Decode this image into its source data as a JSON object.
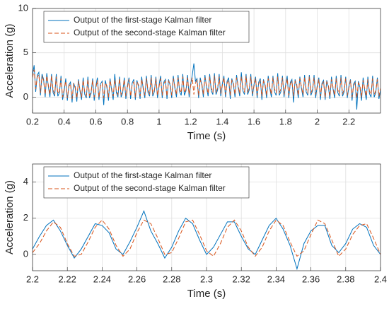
{
  "chart_data": [
    {
      "type": "line",
      "xlabel": "Time (s)",
      "ylabel": "Acceleration (g)",
      "grid": true,
      "legend": "upper left",
      "xlim": [
        0.2,
        2.4
      ],
      "ylim": [
        -1.8,
        10
      ],
      "xticks": [
        0.2,
        0.4,
        0.6,
        0.8,
        1,
        1.2,
        1.4,
        1.6,
        1.8,
        2,
        2.2
      ],
      "yticks": [
        0,
        5,
        10
      ],
      "x": [
        0.2,
        0.21,
        0.22,
        0.23,
        0.24,
        0.25,
        0.26,
        0.27,
        0.28,
        0.29,
        0.3,
        0.31,
        0.32,
        0.33,
        0.34,
        0.35,
        0.36,
        0.37,
        0.38,
        0.39,
        0.4,
        0.41,
        0.42,
        0.43,
        0.44,
        0.45,
        0.46,
        0.47,
        0.48,
        0.49,
        0.5,
        0.51,
        0.52,
        0.53,
        0.54,
        0.55,
        0.56,
        0.57,
        0.58,
        0.59,
        0.6,
        0.61,
        0.62,
        0.63,
        0.64,
        0.65,
        0.66,
        0.67,
        0.68,
        0.69,
        0.7,
        0.71,
        0.72,
        0.73,
        0.74,
        0.75,
        0.76,
        0.77,
        0.78,
        0.79,
        0.8,
        0.81,
        0.82,
        0.83,
        0.84,
        0.85,
        0.86,
        0.87,
        0.88,
        0.89,
        0.9,
        0.91,
        0.92,
        0.93,
        0.94,
        0.95,
        0.96,
        0.97,
        0.98,
        0.99,
        1,
        1.01,
        1.02,
        1.03,
        1.04,
        1.05,
        1.06,
        1.07,
        1.08,
        1.09,
        1.1,
        1.11,
        1.12,
        1.13,
        1.14,
        1.15,
        1.16,
        1.17,
        1.18,
        1.19,
        1.2,
        1.21,
        1.22,
        1.23,
        1.24,
        1.25,
        1.26,
        1.27,
        1.28,
        1.29,
        1.3,
        1.31,
        1.32,
        1.33,
        1.34,
        1.35,
        1.36,
        1.37,
        1.38,
        1.39,
        1.4,
        1.41,
        1.42,
        1.43,
        1.44,
        1.45,
        1.46,
        1.47,
        1.48,
        1.49,
        1.5,
        1.51,
        1.52,
        1.53,
        1.54,
        1.55,
        1.56,
        1.57,
        1.58,
        1.59,
        1.6,
        1.61,
        1.62,
        1.63,
        1.64,
        1.65,
        1.66,
        1.67,
        1.68,
        1.69,
        1.7,
        1.71,
        1.72,
        1.73,
        1.74,
        1.75,
        1.76,
        1.77,
        1.78,
        1.79,
        1.8,
        1.81,
        1.82,
        1.83,
        1.84,
        1.85,
        1.86,
        1.87,
        1.88,
        1.89,
        1.9,
        1.91,
        1.92,
        1.93,
        1.94,
        1.95,
        1.96,
        1.97,
        1.98,
        1.99,
        2,
        2.01,
        2.02,
        2.03,
        2.04,
        2.05,
        2.06,
        2.07,
        2.08,
        2.09,
        2.1,
        2.11,
        2.12,
        2.13,
        2.14,
        2.15,
        2.16,
        2.17,
        2.18,
        2.19,
        2.2,
        2.21,
        2.22,
        2.23,
        2.24,
        2.25,
        2.26,
        2.27,
        2.28,
        2.29,
        2.3,
        2.31,
        2.32,
        2.33,
        2.34,
        2.35,
        2.36,
        2.37,
        2.38,
        2.39,
        2.4
      ],
      "series": [
        {
          "name": "Output of the first-stage Kalman filter",
          "color": "#0072BD",
          "linestyle": "solid",
          "values": [
            2.5,
            3.6,
            0.6,
            2.5,
            2.8,
            0.2,
            2.6,
            2.0,
            0.0,
            2.7,
            1.2,
            0.0,
            2.6,
            0.5,
            0.1,
            2.6,
            0.1,
            0.5,
            2.4,
            -0.3,
            0.7,
            2.1,
            -0.4,
            1.4,
            1.7,
            -0.6,
            1.6,
            1.0,
            -0.5,
            2.0,
            0.7,
            -0.3,
            2.2,
            0.3,
            -0.1,
            2.3,
            -0.1,
            0.4,
            2.1,
            -0.4,
            1.2,
            2.2,
            -0.3,
            1.5,
            1.8,
            -0.9,
            1.9,
            1.1,
            -0.4,
            2.1,
            0.8,
            -0.3,
            2.6,
            0.5,
            0.0,
            2.3,
            0.0,
            0.5,
            2.2,
            -0.2,
            1.3,
            2.2,
            -0.2,
            1.6,
            2.0,
            -0.3,
            1.9,
            1.2,
            -0.2,
            2.3,
            0.9,
            -0.1,
            2.4,
            0.5,
            0.1,
            2.5,
            0.1,
            0.6,
            2.3,
            -0.1,
            1.4,
            2.4,
            -0.1,
            1.7,
            2.0,
            -0.2,
            2.0,
            1.3,
            -0.1,
            2.4,
            1.0,
            0.0,
            2.5,
            0.6,
            0.2,
            2.6,
            0.2,
            0.7,
            2.5,
            0.0,
            1.5,
            2.5,
            3.8,
            1.8,
            2.1,
            -0.1,
            2.2,
            1.4,
            0.0,
            2.5,
            1.1,
            0.1,
            2.6,
            0.7,
            0.3,
            2.7,
            0.3,
            0.8,
            2.6,
            0.1,
            1.5,
            2.4,
            0.0,
            1.8,
            2.2,
            -0.2,
            2.1,
            1.4,
            0.0,
            2.5,
            1.1,
            0.1,
            2.8,
            0.7,
            0.3,
            2.6,
            0.3,
            0.8,
            2.6,
            0.1,
            1.4,
            2.3,
            -0.1,
            1.7,
            2.1,
            -0.3,
            2.0,
            1.3,
            -0.1,
            2.4,
            1.0,
            0.0,
            2.4,
            0.6,
            0.2,
            2.7,
            0.2,
            0.6,
            2.4,
            0.0,
            1.4,
            2.4,
            -0.1,
            1.7,
            2.0,
            -0.6,
            2.0,
            1.3,
            -0.1,
            2.3,
            1.0,
            0.0,
            2.5,
            0.6,
            0.2,
            2.5,
            0.2,
            0.7,
            2.5,
            -0.1,
            1.3,
            2.2,
            -0.3,
            1.6,
            1.9,
            -0.3,
            1.9,
            1.2,
            -0.2,
            2.3,
            0.9,
            -0.1,
            2.4,
            0.5,
            0.1,
            2.5,
            0.1,
            0.6,
            2.3,
            -0.1,
            1.2,
            2.0,
            -0.4,
            1.5,
            1.8,
            -1.4,
            1.8,
            1.1,
            -0.4,
            2.2,
            0.8,
            -0.3,
            2.3,
            0.4,
            0.0,
            2.4,
            0.0,
            0.5,
            2.2,
            -0.2,
            0.8
          ]
        },
        {
          "name": "Output of the second-stage Kalman filter",
          "color": "#D95319",
          "linestyle": "dashed",
          "values": [
            2.2,
            3.1,
            0.9,
            2.3,
            2.5,
            0.5,
            2.3,
            1.9,
            0.3,
            2.4,
            1.4,
            0.3,
            2.4,
            0.8,
            0.4,
            2.3,
            0.4,
            0.7,
            2.1,
            0.0,
            0.9,
            1.8,
            -0.1,
            1.2,
            1.5,
            -0.2,
            1.5,
            1.2,
            -0.1,
            1.8,
            0.9,
            0.0,
            1.9,
            0.6,
            0.2,
            2.0,
            0.2,
            0.6,
            1.9,
            0.0,
            1.0,
            1.9,
            0.0,
            1.3,
            1.6,
            -0.1,
            1.6,
            1.3,
            0.0,
            1.9,
            1.0,
            0.1,
            2.0,
            0.7,
            0.3,
            2.1,
            0.3,
            0.7,
            2.0,
            0.1,
            1.1,
            2.0,
            0.1,
            1.4,
            1.7,
            0.0,
            1.7,
            1.4,
            0.1,
            2.0,
            1.1,
            0.2,
            2.1,
            0.8,
            0.4,
            2.2,
            0.4,
            0.8,
            2.1,
            0.2,
            1.2,
            2.1,
            0.2,
            1.5,
            1.8,
            0.1,
            1.8,
            1.5,
            0.2,
            2.1,
            1.2,
            0.3,
            2.2,
            0.9,
            0.5,
            2.3,
            0.5,
            0.9,
            2.2,
            0.3,
            1.3,
            2.2,
            0.3,
            1.6,
            1.9,
            0.2,
            1.9,
            1.6,
            0.3,
            2.2,
            1.3,
            0.4,
            2.3,
            1.0,
            0.6,
            2.4,
            0.6,
            1.0,
            2.3,
            0.4,
            1.3,
            2.2,
            0.3,
            1.6,
            1.9,
            0.2,
            1.9,
            1.6,
            0.3,
            2.2,
            1.3,
            0.4,
            2.3,
            1.0,
            0.6,
            2.4,
            0.6,
            1.0,
            2.3,
            0.4,
            1.2,
            2.1,
            0.2,
            1.5,
            1.8,
            0.1,
            1.8,
            1.5,
            0.2,
            2.1,
            1.2,
            0.3,
            2.2,
            0.9,
            0.5,
            2.3,
            0.5,
            0.9,
            2.2,
            0.3,
            1.2,
            2.1,
            0.2,
            1.5,
            1.8,
            0.1,
            1.8,
            1.5,
            0.2,
            2.1,
            1.2,
            0.3,
            2.2,
            0.9,
            0.5,
            2.3,
            0.5,
            0.9,
            2.2,
            0.3,
            1.1,
            2.0,
            0.1,
            1.4,
            1.7,
            0.0,
            1.7,
            1.4,
            0.1,
            2.0,
            1.1,
            0.2,
            2.1,
            0.8,
            0.4,
            2.2,
            0.4,
            0.8,
            2.1,
            0.2,
            1.0,
            1.9,
            0.0,
            1.3,
            1.6,
            -0.1,
            1.6,
            1.3,
            0.0,
            1.9,
            1.0,
            0.1,
            2.0,
            0.7,
            0.3,
            2.1,
            0.3,
            0.7,
            2.0,
            0.1,
            1.0
          ]
        }
      ]
    },
    {
      "type": "line",
      "xlabel": "Time (s)",
      "ylabel": "Acceleration (g)",
      "grid": true,
      "legend": "upper left",
      "xlim": [
        2.2,
        2.4
      ],
      "ylim": [
        -0.9,
        5
      ],
      "xticks": [
        2.2,
        2.22,
        2.24,
        2.26,
        2.28,
        2.3,
        2.32,
        2.34,
        2.36,
        2.38,
        2.4
      ],
      "yticks": [
        0,
        2,
        4
      ],
      "x": [
        2.2,
        2.204,
        2.208,
        2.212,
        2.216,
        2.22,
        2.224,
        2.228,
        2.232,
        2.236,
        2.24,
        2.244,
        2.248,
        2.252,
        2.256,
        2.26,
        2.264,
        2.268,
        2.272,
        2.276,
        2.28,
        2.284,
        2.288,
        2.292,
        2.296,
        2.3,
        2.304,
        2.308,
        2.312,
        2.316,
        2.32,
        2.324,
        2.328,
        2.332,
        2.336,
        2.34,
        2.344,
        2.348,
        2.352,
        2.356,
        2.36,
        2.364,
        2.368,
        2.372,
        2.376,
        2.38,
        2.384,
        2.388,
        2.392,
        2.396,
        2.4
      ],
      "series": [
        {
          "name": "Output of the first-stage Kalman filter",
          "color": "#0072BD",
          "linestyle": "solid",
          "values": [
            0.3,
            1.0,
            1.6,
            1.9,
            1.3,
            0.5,
            -0.2,
            0.3,
            1.0,
            1.7,
            1.6,
            1.2,
            0.3,
            0.0,
            0.7,
            1.5,
            2.4,
            1.3,
            0.6,
            -0.2,
            0.4,
            1.3,
            2.0,
            1.7,
            0.8,
            0.0,
            0.4,
            1.1,
            1.8,
            1.8,
            1.0,
            0.3,
            0.0,
            0.8,
            1.6,
            2.0,
            1.4,
            0.5,
            -0.8,
            0.6,
            1.3,
            1.6,
            1.6,
            0.5,
            0.1,
            0.6,
            1.4,
            1.7,
            1.5,
            0.5,
            0.0
          ]
        },
        {
          "name": "Output of the second-stage Kalman filter",
          "color": "#D95319",
          "linestyle": "dashed",
          "values": [
            0.1,
            0.6,
            1.3,
            1.8,
            1.5,
            0.6,
            -0.1,
            0.0,
            0.7,
            1.5,
            1.9,
            1.4,
            0.5,
            -0.1,
            0.3,
            1.2,
            1.9,
            1.7,
            0.9,
            0.0,
            0.1,
            0.9,
            1.8,
            1.9,
            1.1,
            0.2,
            -0.1,
            0.6,
            1.5,
            1.9,
            1.3,
            0.4,
            -0.1,
            0.4,
            1.3,
            1.9,
            1.6,
            0.7,
            -0.1,
            0.2,
            1.1,
            1.9,
            1.7,
            0.8,
            -0.1,
            0.3,
            1.1,
            1.6,
            1.7,
            0.9,
            0.0
          ]
        }
      ]
    }
  ]
}
